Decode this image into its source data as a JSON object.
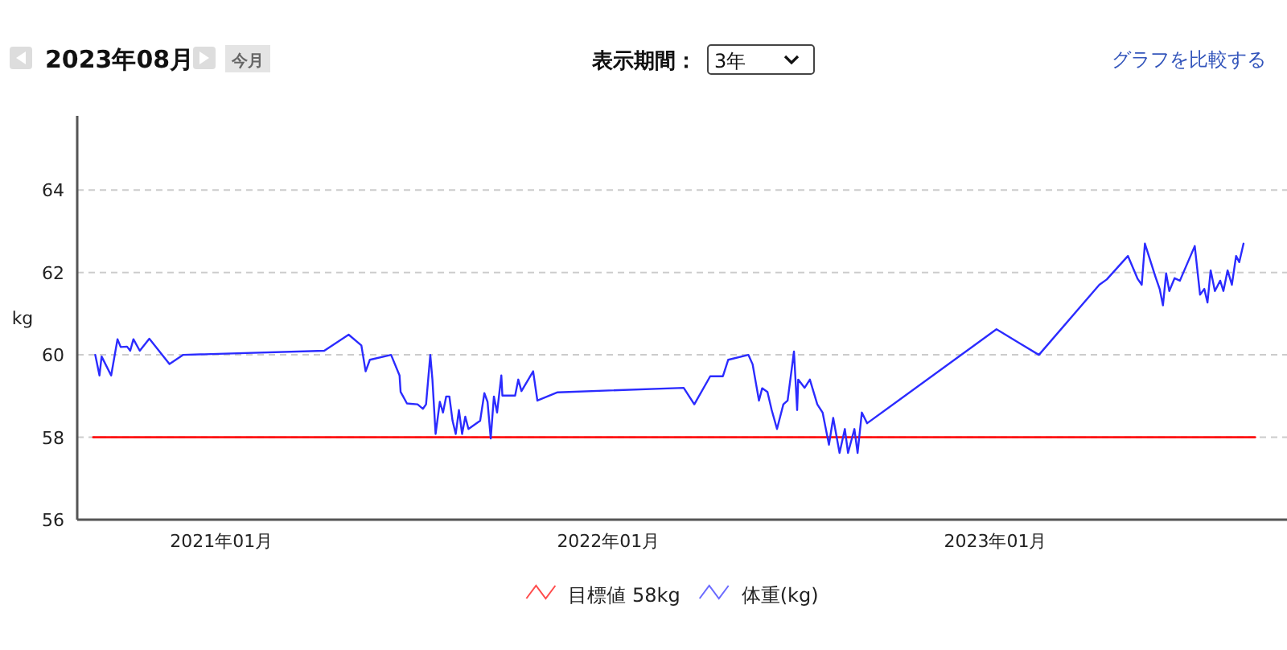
{
  "chart_data": {
    "type": "line",
    "title": "2023年08月",
    "ylabel": "kg",
    "annotations": [
      "今月",
      "表示期間：",
      "3年",
      "グラフを比較する"
    ],
    "xlim": [
      "2020-08-18",
      "2023-10-03"
    ],
    "xticks": [
      {
        "value": "2021-01",
        "label": "2021年01月"
      },
      {
        "value": "2022-01",
        "label": "2022年01月"
      },
      {
        "value": "2023-01",
        "label": "2023年01月"
      }
    ],
    "ylim": [
      56,
      65.8
    ],
    "yticks": [
      56,
      58,
      60,
      62,
      64
    ],
    "grid": "y",
    "legend": "bottom",
    "series": [
      {
        "name": "目標値 58kg",
        "color": "#ff0000",
        "x": [
          "2020-09-02",
          "2023-09-03"
        ],
        "values": [
          58,
          58
        ]
      },
      {
        "name": "体重(kg)",
        "color": "#2b2bff",
        "x": [
          "2020-09-04",
          "2020-09-08",
          "2020-09-10",
          "2020-09-19",
          "2020-09-25",
          "2020-09-28",
          "2020-10-04",
          "2020-10-07",
          "2020-10-10",
          "2020-10-16",
          "2020-10-25",
          "2020-11-13",
          "2020-11-26",
          "2021-04-08",
          "2021-05-01",
          "2021-05-13",
          "2021-05-17",
          "2021-05-21",
          "2021-06-10",
          "2021-06-18",
          "2021-06-19",
          "2021-06-25",
          "2021-07-05",
          "2021-07-10",
          "2021-07-13",
          "2021-07-17",
          "2021-07-19",
          "2021-07-22",
          "2021-07-26",
          "2021-07-29",
          "2021-08-01",
          "2021-08-04",
          "2021-08-07",
          "2021-08-10",
          "2021-08-13",
          "2021-08-16",
          "2021-08-19",
          "2021-08-22",
          "2021-09-02",
          "2021-09-06",
          "2021-09-09",
          "2021-09-12",
          "2021-09-15",
          "2021-09-18",
          "2021-09-22",
          "2021-09-23",
          "2021-10-05",
          "2021-10-08",
          "2021-10-11",
          "2021-10-22",
          "2021-10-26",
          "2021-11-14",
          "2022-03-13",
          "2022-03-23",
          "2022-04-07",
          "2022-04-19",
          "2022-04-24",
          "2022-05-13",
          "2022-05-17",
          "2022-05-23",
          "2022-05-26",
          "2022-05-31",
          "2022-06-04",
          "2022-06-09",
          "2022-06-15",
          "2022-06-19",
          "2022-06-25",
          "2022-06-28",
          "2022-06-29",
          "2022-07-05",
          "2022-07-10",
          "2022-07-17",
          "2022-07-22",
          "2022-07-28",
          "2022-08-01",
          "2022-08-07",
          "2022-08-12",
          "2022-08-15",
          "2022-08-21",
          "2022-08-24",
          "2022-08-28",
          "2022-09-02",
          "2023-01-02",
          "2023-02-11",
          "2023-04-09",
          "2023-04-16",
          "2023-05-06",
          "2023-05-15",
          "2023-05-19",
          "2023-05-22",
          "2023-06-01",
          "2023-06-05",
          "2023-06-08",
          "2023-06-11",
          "2023-06-14",
          "2023-06-19",
          "2023-06-24",
          "2023-07-08",
          "2023-07-13",
          "2023-07-17",
          "2023-07-20",
          "2023-07-23",
          "2023-07-27",
          "2023-08-01",
          "2023-08-04",
          "2023-08-08",
          "2023-08-12",
          "2023-08-16",
          "2023-08-19",
          "2023-08-23"
        ],
        "values": [
          60.0,
          59.5,
          59.96,
          59.5,
          60.38,
          60.19,
          60.2,
          60.1,
          60.38,
          60.1,
          60.39,
          59.78,
          60.0,
          60.1,
          60.49,
          60.23,
          59.6,
          59.88,
          60.0,
          59.5,
          59.1,
          58.82,
          58.8,
          58.69,
          58.8,
          60.0,
          59.4,
          58.08,
          58.86,
          58.6,
          58.99,
          58.99,
          58.4,
          58.08,
          58.66,
          58.08,
          58.5,
          58.2,
          58.4,
          59.07,
          58.86,
          57.97,
          58.99,
          58.6,
          59.5,
          59.01,
          59.01,
          59.4,
          59.12,
          59.6,
          58.89,
          59.09,
          59.2,
          58.8,
          59.48,
          59.48,
          59.88,
          60.0,
          59.77,
          58.89,
          59.19,
          59.1,
          58.66,
          58.2,
          58.8,
          58.89,
          60.08,
          58.66,
          59.4,
          59.2,
          59.4,
          58.8,
          58.6,
          57.82,
          58.47,
          57.62,
          58.2,
          57.62,
          58.2,
          57.62,
          58.6,
          58.34,
          60.62,
          60.0,
          61.7,
          61.83,
          62.4,
          61.85,
          61.7,
          62.7,
          61.89,
          61.59,
          61.2,
          61.98,
          61.55,
          61.86,
          61.8,
          62.64,
          61.46,
          61.6,
          61.27,
          62.05,
          61.55,
          61.8,
          61.55,
          62.05,
          61.7,
          62.4,
          62.25,
          62.7
        ]
      }
    ]
  }
}
